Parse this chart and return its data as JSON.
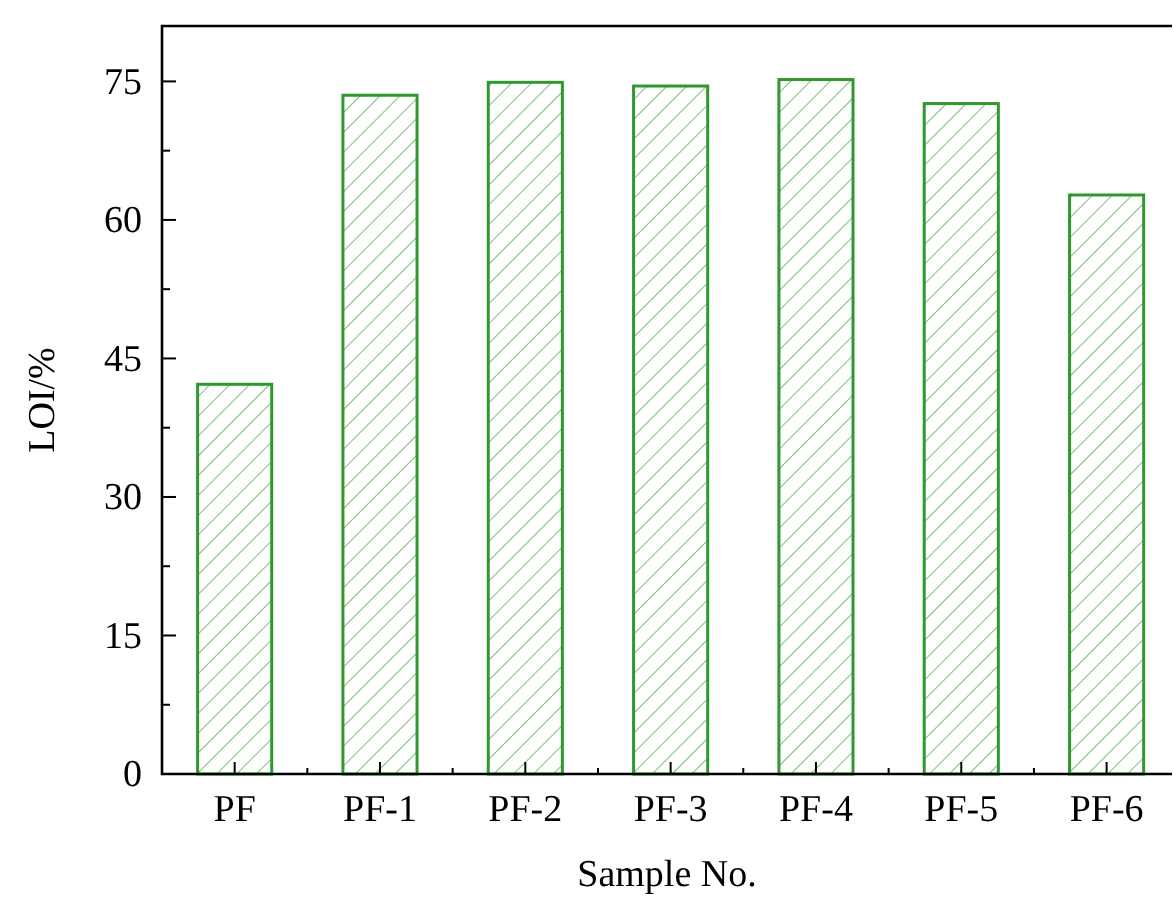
{
  "chart_data": {
    "type": "bar",
    "xlabel": "Sample No.",
    "ylabel": "LOI/%",
    "categories": [
      "PF",
      "PF-1",
      "PF-2",
      "PF-3",
      "PF-4",
      "PF-5",
      "PF-6"
    ],
    "values": [
      42.2,
      73.5,
      74.9,
      74.5,
      75.2,
      72.6,
      62.7
    ],
    "color": "#2e9a2e",
    "ylim": [
      0,
      81
    ],
    "yticks": [
      0,
      {
        "value": 7.5,
        "label": null
      },
      15,
      {
        "value": 22.5,
        "label": null
      },
      30,
      {
        "value": 37.5,
        "label": null
      },
      45,
      {
        "value": 52.5,
        "label": null
      },
      60,
      {
        "value": 67.5,
        "label": null
      },
      75
    ],
    "grid": false
  }
}
